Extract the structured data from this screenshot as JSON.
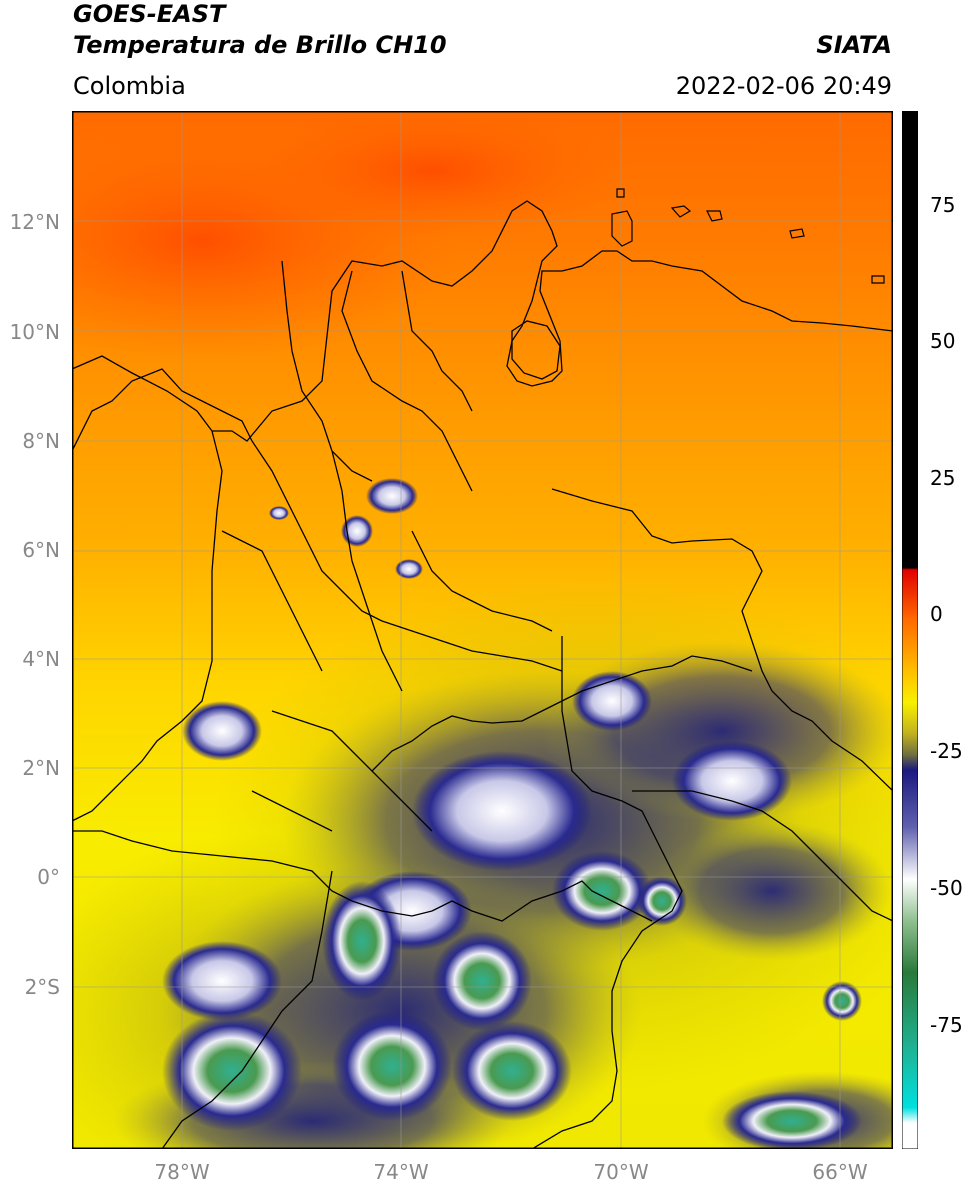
{
  "header": {
    "satellite": "GOES-EAST",
    "product": "Temperatura de Brillo CH10",
    "region": "Colombia",
    "agency": "SIATA",
    "datetime": "2022-02-06 20:49"
  },
  "axes": {
    "lat_labels": [
      "12°N",
      "10°N",
      "8°N",
      "6°N",
      "4°N",
      "2°N",
      "0°",
      "2°S"
    ],
    "lon_labels": [
      "78°W",
      "74°W",
      "70°W",
      "66°W"
    ]
  },
  "colorbar": {
    "labels": [
      "75",
      "50",
      "25",
      "0",
      "-25",
      "-50",
      "-75"
    ],
    "colors": {
      "warm": "#ff5a00",
      "mid": "#ffd000",
      "yellow": "#f8f000",
      "olive": "#a8a020",
      "navy": "#1a1a80",
      "white": "#f2f2f8",
      "green": "#3a8a3a",
      "teal": "#20c0a0",
      "cyan": "#00e0e0",
      "red": "#e00000",
      "black": "#000000"
    }
  }
}
